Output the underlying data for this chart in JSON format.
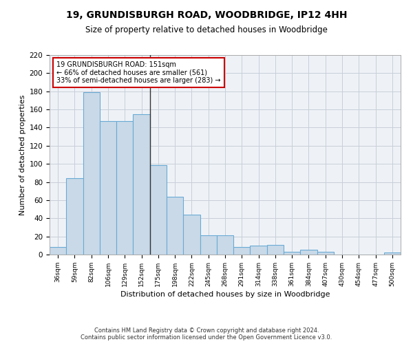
{
  "title1": "19, GRUNDISBURGH ROAD, WOODBRIDGE, IP12 4HH",
  "title2": "Size of property relative to detached houses in Woodbridge",
  "xlabel": "Distribution of detached houses by size in Woodbridge",
  "ylabel": "Number of detached properties",
  "bin_labels": [
    "36sqm",
    "59sqm",
    "82sqm",
    "106sqm",
    "129sqm",
    "152sqm",
    "175sqm",
    "198sqm",
    "222sqm",
    "245sqm",
    "268sqm",
    "291sqm",
    "314sqm",
    "338sqm",
    "361sqm",
    "384sqm",
    "407sqm",
    "430sqm",
    "454sqm",
    "477sqm",
    "500sqm"
  ],
  "bar_heights": [
    8,
    84,
    179,
    147,
    147,
    155,
    99,
    64,
    44,
    21,
    21,
    8,
    10,
    11,
    3,
    5,
    3,
    0,
    0,
    0,
    2
  ],
  "bar_color": "#c9d9e8",
  "bar_edge_color": "#6aaad4",
  "vline_index": 5,
  "annotation_line1": "19 GRUNDISBURGH ROAD: 151sqm",
  "annotation_line2": "← 66% of detached houses are smaller (561)",
  "annotation_line3": "33% of semi-detached houses are larger (283) →",
  "annotation_box_color": "white",
  "annotation_box_edge": "#cc0000",
  "ylim": [
    0,
    220
  ],
  "yticks": [
    0,
    20,
    40,
    60,
    80,
    100,
    120,
    140,
    160,
    180,
    200,
    220
  ],
  "footer_text": "Contains HM Land Registry data © Crown copyright and database right 2024.\nContains public sector information licensed under the Open Government Licence v3.0.",
  "plot_bg_color": "#eef2f7",
  "grid_color": "#c8ced8",
  "title1_fontsize": 10,
  "title2_fontsize": 8.5
}
